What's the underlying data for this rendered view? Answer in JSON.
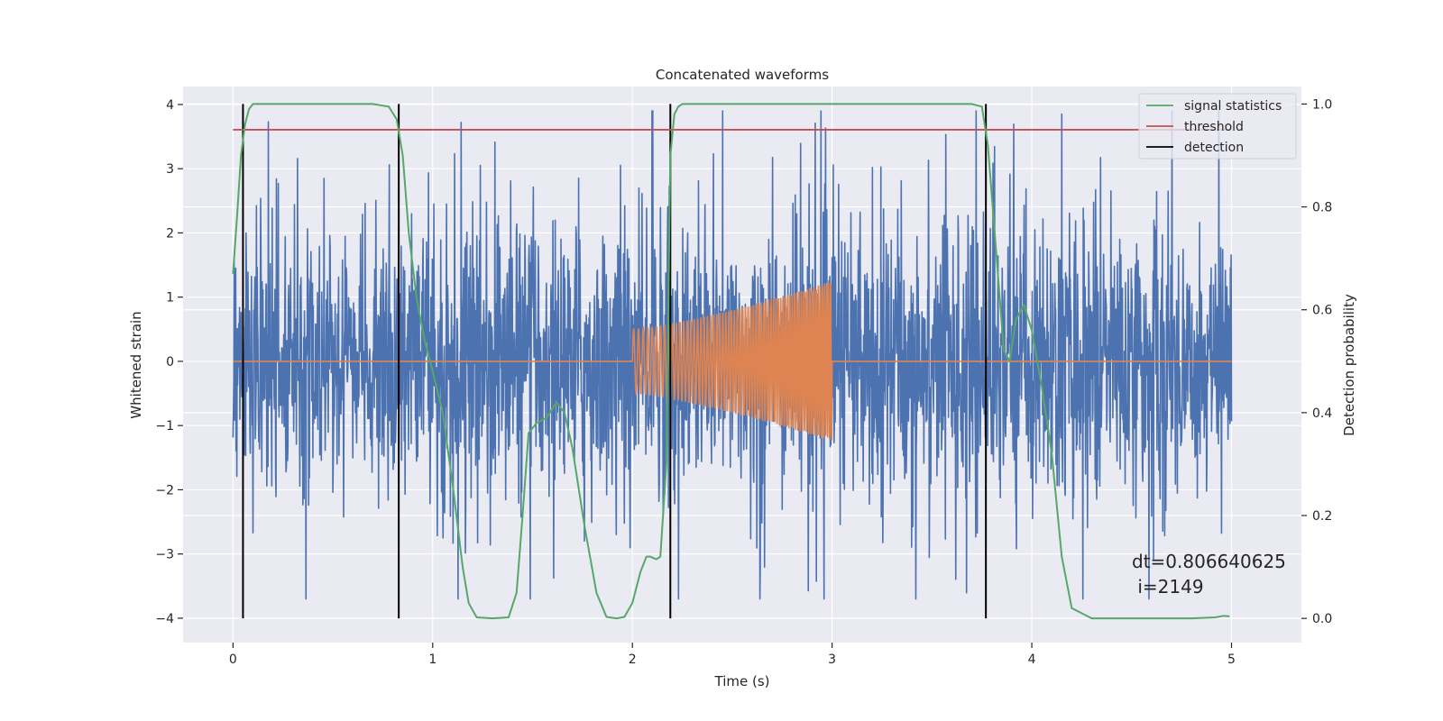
{
  "chart_data": {
    "type": "line",
    "title": "Concatenated waveforms",
    "xlabel": "Time (s)",
    "ylabel": "Whitened strain",
    "y2label": "Detection probability",
    "xlim": [
      -0.25,
      5.35
    ],
    "ylim": [
      -4.38,
      4.28
    ],
    "y2lim": [
      -0.047,
      1.034
    ],
    "x_ticks": [
      0,
      1,
      2,
      3,
      4,
      5
    ],
    "x_tick_labels": [
      "0",
      "1",
      "2",
      "3",
      "4",
      "5"
    ],
    "y_ticks": [
      4,
      3,
      2,
      1,
      0,
      -1,
      -2,
      -3,
      -4
    ],
    "y_tick_labels": [
      "4",
      "3",
      "2",
      "1",
      "0",
      "−1",
      "−2",
      "−3",
      "−4"
    ],
    "y2_ticks": [
      1.0,
      0.8,
      0.6,
      0.4,
      0.2,
      0.0
    ],
    "y2_tick_labels": [
      "1.0",
      "0.8",
      "0.6",
      "0.4",
      "0.2",
      "0.0"
    ],
    "grid": true,
    "legend_position": "top-right",
    "colors": {
      "noise": "#4c72b0",
      "template": "#dd8452",
      "signal_statistics": "#55a868",
      "threshold": "#c44e52",
      "detection": "#000000",
      "axes_bg": "#eaeaf2",
      "grid": "#ffffff"
    },
    "series": [
      {
        "name": "",
        "axis": "left",
        "description_of_values": "whitened noise strain, sampled 0 to 5 s, amplitude mostly within ±2.5, peaks to about 3.9 near t=2.1",
        "x_range": [
          0,
          5
        ],
        "typical_amplitude": 2.2,
        "max": 3.9,
        "min": -3.7
      },
      {
        "name": "",
        "axis": "left",
        "description_of_values": "injected chirp, zero outside 2–3 s, growing amplitude from 0.5 to 1.25",
        "x_range": [
          0,
          5
        ],
        "chirp_start": 2.0,
        "chirp_end": 3.0,
        "chirp_amplitude_start": 0.5,
        "chirp_amplitude_end": 1.25
      },
      {
        "name": "signal statistics",
        "axis": "right",
        "x": [
          0.0,
          0.02,
          0.04,
          0.06,
          0.08,
          0.1,
          0.15,
          0.3,
          0.5,
          0.7,
          0.78,
          0.82,
          0.85,
          0.88,
          0.92,
          0.96,
          1.0,
          1.05,
          1.1,
          1.15,
          1.18,
          1.22,
          1.3,
          1.38,
          1.42,
          1.45,
          1.48,
          1.52,
          1.57,
          1.62,
          1.66,
          1.7,
          1.76,
          1.82,
          1.87,
          1.92,
          1.96,
          2.0,
          2.04,
          2.07,
          2.09,
          2.12,
          2.14,
          2.17,
          2.19,
          2.21,
          2.23,
          2.25,
          2.3,
          2.5,
          3.0,
          3.5,
          3.7,
          3.75,
          3.78,
          3.82,
          3.86,
          3.89,
          3.92,
          3.96,
          4.0,
          4.05,
          4.1,
          4.15,
          4.2,
          4.3,
          4.5,
          4.8,
          4.92,
          4.96,
          4.99
        ],
        "values": [
          0.67,
          0.78,
          0.9,
          0.96,
          0.99,
          1.0,
          1.0,
          1.0,
          1.0,
          1.0,
          0.995,
          0.97,
          0.9,
          0.75,
          0.62,
          0.54,
          0.48,
          0.4,
          0.26,
          0.1,
          0.03,
          0.002,
          0.0,
          0.002,
          0.05,
          0.2,
          0.36,
          0.38,
          0.39,
          0.42,
          0.4,
          0.33,
          0.18,
          0.05,
          0.003,
          0.0,
          0.003,
          0.03,
          0.09,
          0.12,
          0.12,
          0.115,
          0.12,
          0.3,
          0.9,
          0.98,
          0.995,
          1.0,
          1.0,
          1.0,
          1.0,
          1.0,
          1.0,
          0.995,
          0.92,
          0.72,
          0.52,
          0.5,
          0.58,
          0.61,
          0.56,
          0.45,
          0.32,
          0.12,
          0.02,
          0.0,
          0.0,
          0.0,
          0.002,
          0.005,
          0.004
        ]
      },
      {
        "name": "threshold",
        "axis": "right",
        "x": [
          0,
          5
        ],
        "values": [
          0.95,
          0.95
        ]
      },
      {
        "name": "detection",
        "axis": "right",
        "type": "vlines",
        "x": [
          0.05,
          0.83,
          2.19,
          3.77
        ],
        "range": [
          0.0,
          1.0
        ]
      }
    ],
    "annotation": {
      "line1": "dt=0.806640625",
      "line2": " i=2149",
      "x": 4.5,
      "y": -3.35
    },
    "legend": [
      "signal statistics",
      "threshold",
      "detection"
    ]
  }
}
